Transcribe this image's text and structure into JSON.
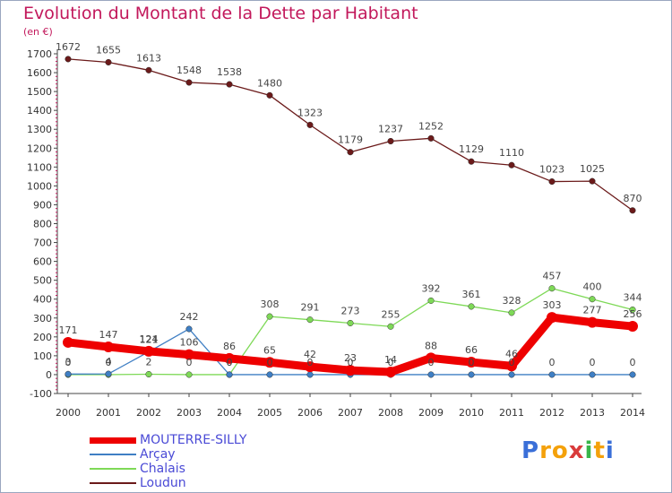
{
  "title": "Evolution du Montant de la Dette par Habitant",
  "subtitle": "(en €)",
  "logo": {
    "text": "ProXiti",
    "letters": [
      "P",
      "r",
      "o",
      "x",
      "i",
      "t",
      "i"
    ],
    "colors": [
      "#3a6fd8",
      "#f4a10b",
      "#f4a10b",
      "#d93b3b",
      "#39b54a",
      "#f4a10b",
      "#3a6fd8"
    ]
  },
  "chart_data": {
    "type": "line",
    "title": "Evolution du Montant de la Dette par Habitant",
    "ylabel": "(en €)",
    "xlabel": "",
    "x": [
      "2000",
      "2001",
      "2002",
      "2003",
      "2004",
      "2005",
      "2006",
      "2007",
      "2008",
      "2009",
      "2010",
      "2011",
      "2012",
      "2013",
      "2014"
    ],
    "ylim": [
      -100,
      1700
    ],
    "yticks": [
      -100,
      0,
      100,
      200,
      300,
      400,
      500,
      600,
      700,
      800,
      900,
      1000,
      1100,
      1200,
      1300,
      1400,
      1500,
      1600,
      1700
    ],
    "grid": false,
    "legend_position": "bottom-left",
    "series": [
      {
        "name": "MOUTERRE-SILLY",
        "color": "#ee0000",
        "values": [
          171,
          147,
          124,
          106,
          86,
          65,
          42,
          23,
          14,
          88,
          66,
          46,
          303,
          277,
          256
        ],
        "labels": [
          "171",
          "147",
          "124",
          "106",
          "86",
          "65",
          "42",
          "23",
          "14",
          "88",
          "66",
          "46",
          "303",
          "277",
          "256"
        ]
      },
      {
        "name": "Arçay",
        "color": "#3f7fc4",
        "values": [
          3,
          4,
          121,
          242,
          0,
          0,
          0,
          0,
          0,
          0,
          0,
          0,
          0,
          0,
          0
        ],
        "labels": [
          "3",
          "4",
          "121",
          "242",
          "0",
          "0",
          "0",
          "0",
          "0",
          "0",
          "0",
          "0",
          "0",
          "0",
          "0"
        ]
      },
      {
        "name": "Chalais",
        "color": "#7ed957",
        "values": [
          0,
          0,
          2,
          0,
          0,
          308,
          291,
          273,
          255,
          392,
          361,
          328,
          457,
          400,
          344
        ],
        "labels": [
          "0",
          "0",
          "2",
          "0",
          "0",
          "308",
          "291",
          "273",
          "255",
          "392",
          "361",
          "328",
          "457",
          "400",
          "344"
        ]
      },
      {
        "name": "Loudun",
        "color": "#6b1a1a",
        "values": [
          1672,
          1655,
          1613,
          1548,
          1538,
          1480,
          1323,
          1179,
          1237,
          1252,
          1129,
          1110,
          1023,
          1025,
          870
        ],
        "labels": [
          "1672",
          "1655",
          "1613",
          "1548",
          "1538",
          "1480",
          "1323",
          "1179",
          "1237",
          "1252",
          "1129",
          "1110",
          "1023",
          "1025",
          "870"
        ]
      }
    ]
  }
}
